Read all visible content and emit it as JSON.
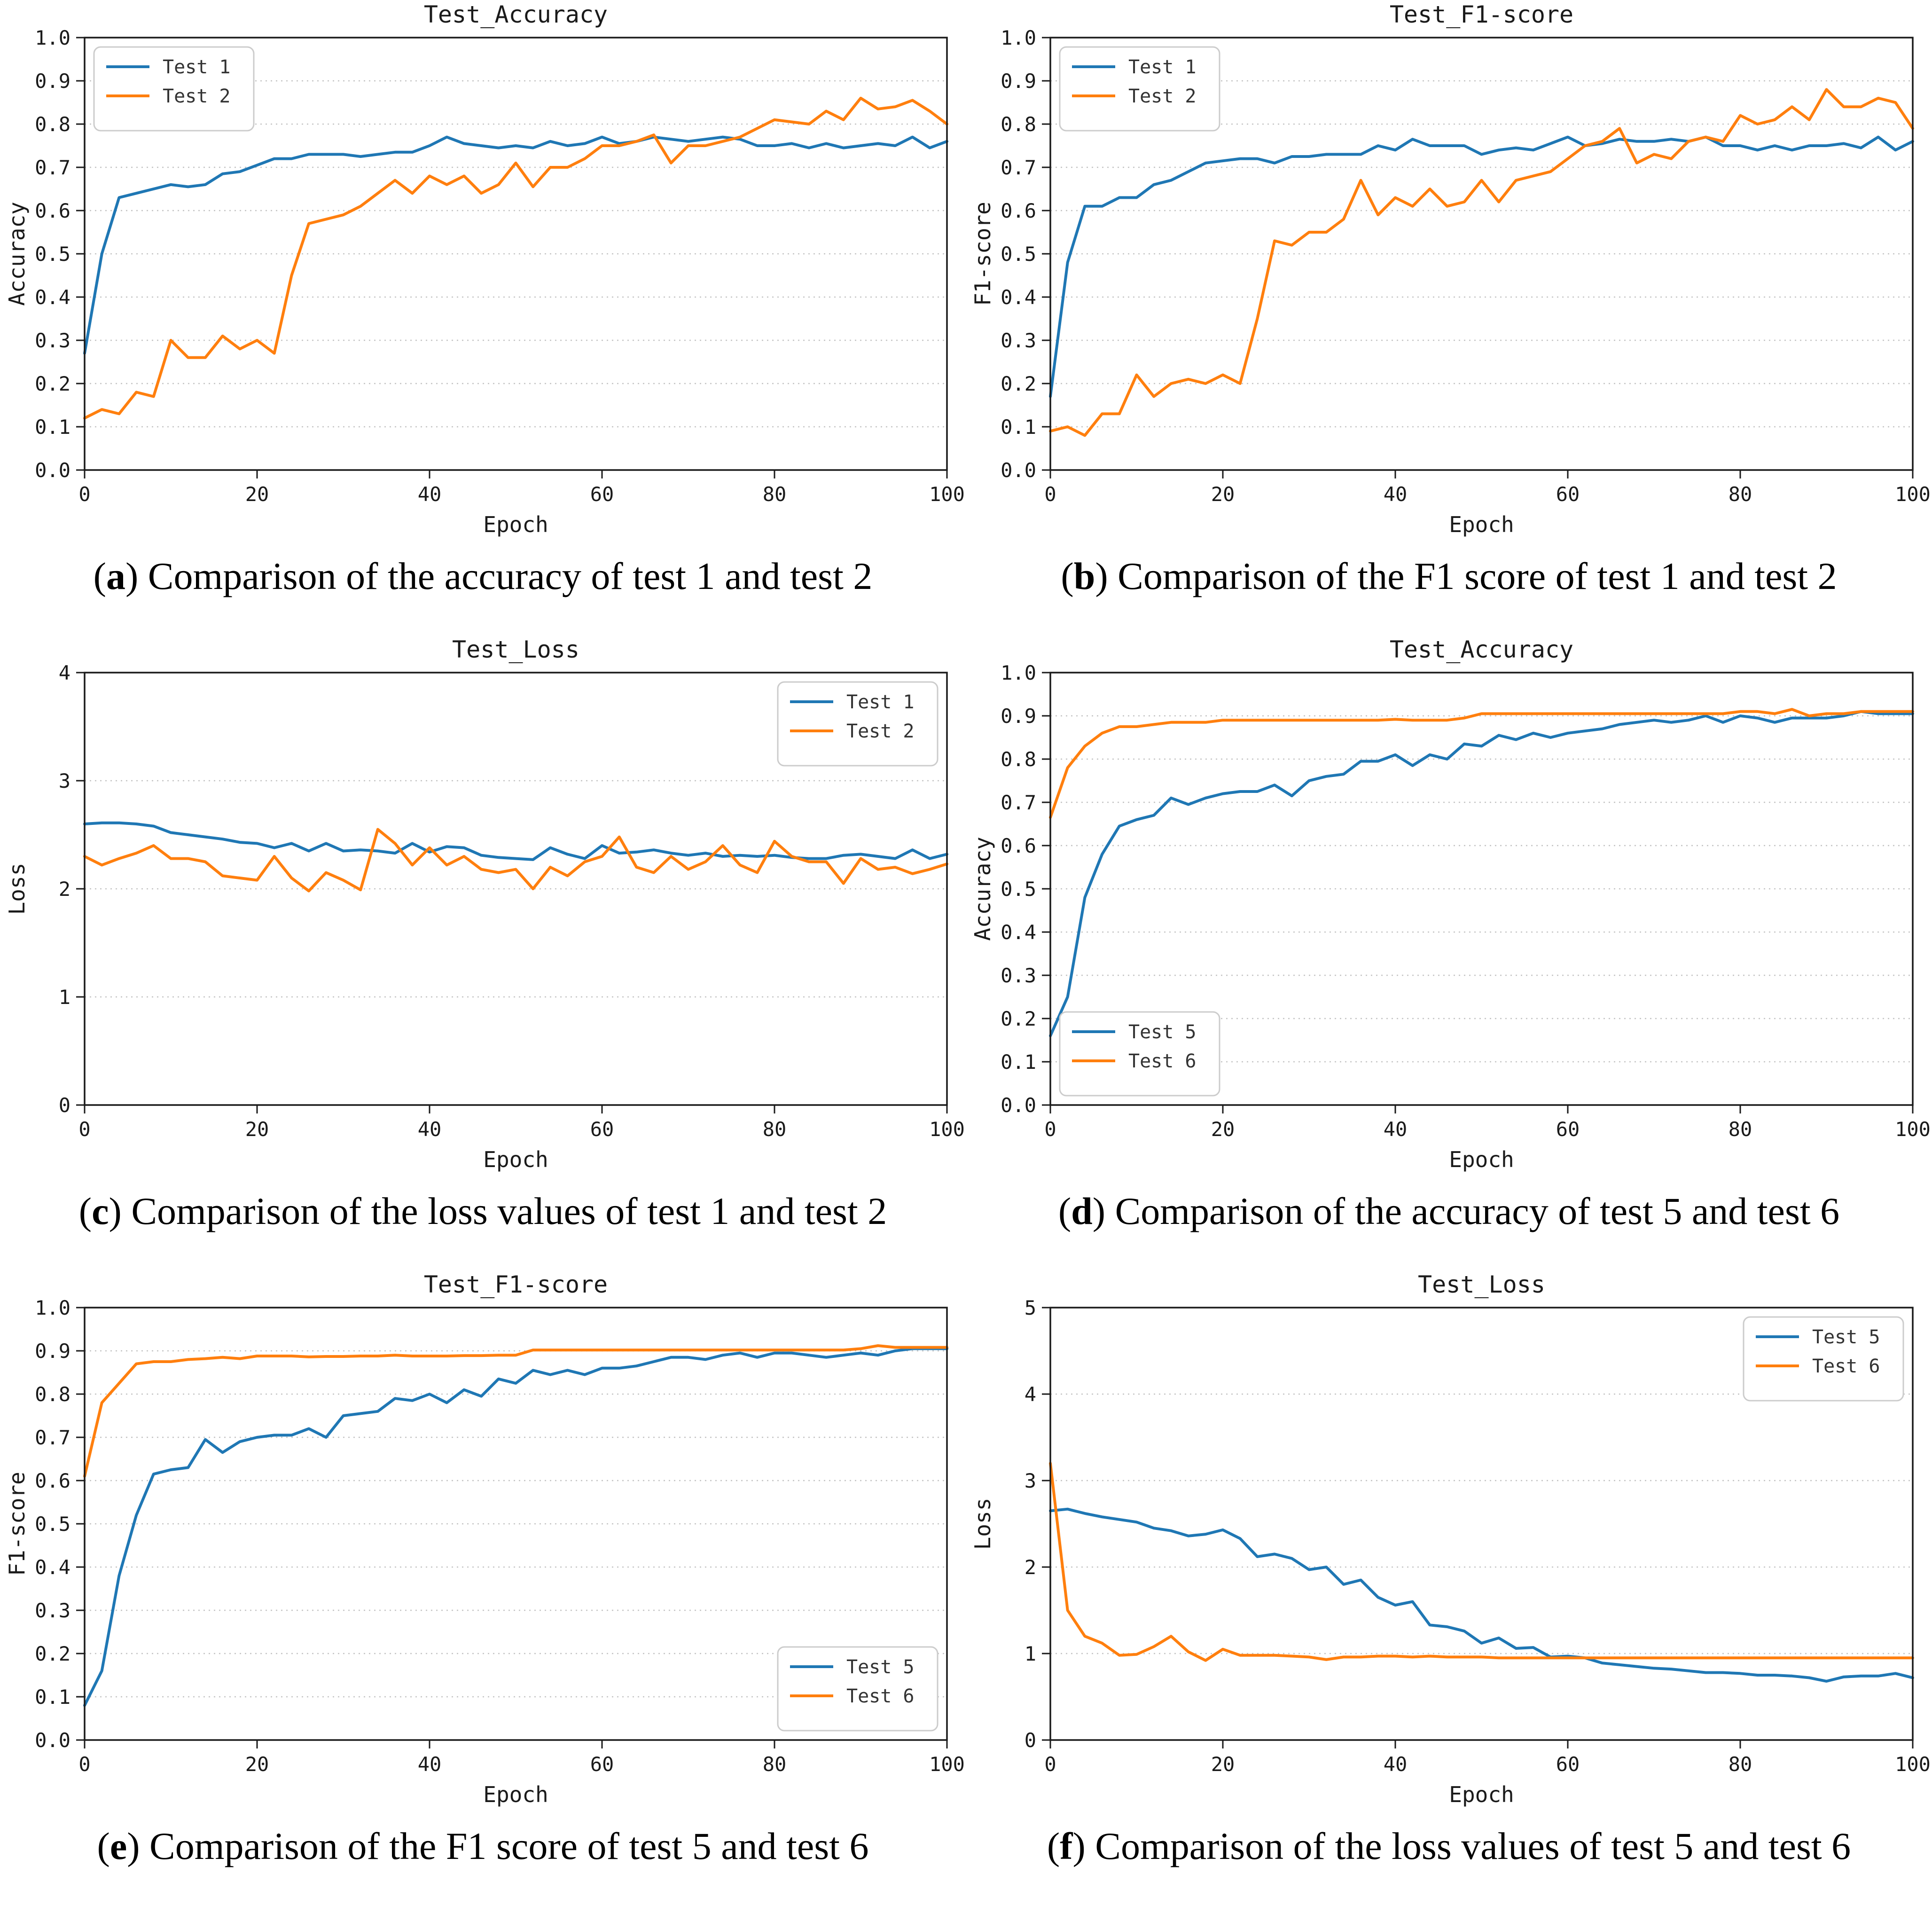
{
  "figure": {
    "type": "academic-figure-grid",
    "columns": 2,
    "rows": 3
  },
  "colors": {
    "series_blue": "#1f77b4",
    "series_orange": "#ff7f0e",
    "grid_line": "#c4c4c4",
    "axis": "#1a1a1a",
    "legend_border": "#cccccc",
    "background": "#ffffff"
  },
  "caption_format": {
    "open": "(",
    "close": ")"
  },
  "chart_data": [
    {
      "id": "a",
      "type": "line",
      "title": "Test_Accuracy",
      "xlabel": "Epoch",
      "ylabel": "Accuracy",
      "xlim": [
        0,
        100
      ],
      "ylim": [
        0,
        1
      ],
      "xticks": [
        0,
        20,
        40,
        60,
        80,
        100
      ],
      "yticks": [
        0,
        0.1,
        0.2,
        0.3,
        0.4,
        0.5,
        0.6,
        0.7,
        0.8,
        0.9,
        1
      ],
      "ytick_decimals": 1,
      "grid": "horizontal-dotted",
      "legend_pos": "top-left",
      "x_start": 0,
      "x_step": 2,
      "series": [
        {
          "name": "Test 1",
          "color": "#1f77b4",
          "values": [
            0.27,
            0.5,
            0.63,
            0.64,
            0.65,
            0.66,
            0.655,
            0.66,
            0.685,
            0.69,
            0.705,
            0.72,
            0.72,
            0.73,
            0.73,
            0.73,
            0.725,
            0.73,
            0.735,
            0.735,
            0.75,
            0.77,
            0.755,
            0.75,
            0.745,
            0.75,
            0.745,
            0.76,
            0.75,
            0.755,
            0.77,
            0.755,
            0.76,
            0.77,
            0.765,
            0.76,
            0.765,
            0.77,
            0.765,
            0.75,
            0.75,
            0.755,
            0.745,
            0.755,
            0.745,
            0.75,
            0.755,
            0.75,
            0.77,
            0.745,
            0.76
          ]
        },
        {
          "name": "Test 2",
          "color": "#ff7f0e",
          "values": [
            0.12,
            0.14,
            0.13,
            0.18,
            0.17,
            0.3,
            0.26,
            0.26,
            0.31,
            0.28,
            0.3,
            0.27,
            0.45,
            0.57,
            0.58,
            0.59,
            0.61,
            0.64,
            0.67,
            0.64,
            0.68,
            0.66,
            0.68,
            0.64,
            0.66,
            0.71,
            0.655,
            0.7,
            0.7,
            0.72,
            0.75,
            0.75,
            0.76,
            0.775,
            0.71,
            0.75,
            0.75,
            0.76,
            0.77,
            0.79,
            0.81,
            0.805,
            0.8,
            0.83,
            0.81,
            0.86,
            0.835,
            0.84,
            0.855,
            0.83,
            0.8
          ]
        }
      ],
      "caption_letter": "a",
      "caption_text": "Comparison of the accuracy of test 1 and test 2"
    },
    {
      "id": "b",
      "type": "line",
      "title": "Test_F1-score",
      "xlabel": "Epoch",
      "ylabel": "F1-score",
      "xlim": [
        0,
        100
      ],
      "ylim": [
        0,
        1
      ],
      "xticks": [
        0,
        20,
        40,
        60,
        80,
        100
      ],
      "yticks": [
        0,
        0.1,
        0.2,
        0.3,
        0.4,
        0.5,
        0.6,
        0.7,
        0.8,
        0.9,
        1
      ],
      "ytick_decimals": 1,
      "grid": "horizontal-dotted",
      "legend_pos": "top-left",
      "x_start": 0,
      "x_step": 2,
      "series": [
        {
          "name": "Test 1",
          "color": "#1f77b4",
          "values": [
            0.17,
            0.48,
            0.61,
            0.61,
            0.63,
            0.63,
            0.66,
            0.67,
            0.69,
            0.71,
            0.715,
            0.72,
            0.72,
            0.71,
            0.725,
            0.725,
            0.73,
            0.73,
            0.73,
            0.75,
            0.74,
            0.765,
            0.75,
            0.75,
            0.75,
            0.73,
            0.74,
            0.745,
            0.74,
            0.755,
            0.77,
            0.75,
            0.755,
            0.765,
            0.76,
            0.76,
            0.765,
            0.76,
            0.77,
            0.75,
            0.75,
            0.74,
            0.75,
            0.74,
            0.75,
            0.75,
            0.755,
            0.745,
            0.77,
            0.74,
            0.76
          ]
        },
        {
          "name": "Test 2",
          "color": "#ff7f0e",
          "values": [
            0.09,
            0.1,
            0.08,
            0.13,
            0.13,
            0.22,
            0.17,
            0.2,
            0.21,
            0.2,
            0.22,
            0.2,
            0.35,
            0.53,
            0.52,
            0.55,
            0.55,
            0.58,
            0.67,
            0.59,
            0.63,
            0.61,
            0.65,
            0.61,
            0.62,
            0.67,
            0.62,
            0.67,
            0.68,
            0.69,
            0.72,
            0.75,
            0.76,
            0.79,
            0.71,
            0.73,
            0.72,
            0.76,
            0.77,
            0.76,
            0.82,
            0.8,
            0.81,
            0.84,
            0.81,
            0.88,
            0.84,
            0.84,
            0.86,
            0.85,
            0.79
          ]
        }
      ],
      "caption_letter": "b",
      "caption_text": "Comparison of the F1 score of test 1 and test 2"
    },
    {
      "id": "c",
      "type": "line",
      "title": "Test_Loss",
      "xlabel": "Epoch",
      "ylabel": "Loss",
      "xlim": [
        0,
        100
      ],
      "ylim": [
        0,
        4
      ],
      "xticks": [
        0,
        20,
        40,
        60,
        80,
        100
      ],
      "yticks": [
        0,
        1,
        2,
        3,
        4
      ],
      "ytick_decimals": 0,
      "grid": "horizontal-dotted",
      "legend_pos": "top-right",
      "x_start": 0,
      "x_step": 2,
      "series": [
        {
          "name": "Test 1",
          "color": "#1f77b4",
          "values": [
            2.6,
            2.61,
            2.61,
            2.6,
            2.58,
            2.52,
            2.5,
            2.48,
            2.46,
            2.43,
            2.42,
            2.38,
            2.42,
            2.35,
            2.42,
            2.35,
            2.36,
            2.35,
            2.33,
            2.42,
            2.34,
            2.39,
            2.38,
            2.31,
            2.29,
            2.28,
            2.27,
            2.38,
            2.32,
            2.28,
            2.4,
            2.33,
            2.34,
            2.36,
            2.33,
            2.31,
            2.33,
            2.3,
            2.31,
            2.3,
            2.31,
            2.29,
            2.28,
            2.28,
            2.31,
            2.32,
            2.3,
            2.28,
            2.36,
            2.28,
            2.32
          ]
        },
        {
          "name": "Test 2",
          "color": "#ff7f0e",
          "values": [
            2.3,
            2.22,
            2.28,
            2.33,
            2.4,
            2.28,
            2.28,
            2.25,
            2.12,
            2.1,
            2.08,
            2.3,
            2.1,
            1.98,
            2.15,
            2.08,
            1.99,
            2.55,
            2.42,
            2.22,
            2.38,
            2.22,
            2.3,
            2.18,
            2.15,
            2.18,
            2.0,
            2.2,
            2.12,
            2.25,
            2.3,
            2.48,
            2.2,
            2.15,
            2.3,
            2.18,
            2.25,
            2.4,
            2.22,
            2.15,
            2.44,
            2.3,
            2.25,
            2.25,
            2.05,
            2.28,
            2.18,
            2.2,
            2.14,
            2.18,
            2.23
          ]
        }
      ],
      "caption_letter": "c",
      "caption_text": "Comparison of the loss values of test 1 and test 2"
    },
    {
      "id": "d",
      "type": "line",
      "title": "Test_Accuracy",
      "xlabel": "Epoch",
      "ylabel": "Accuracy",
      "xlim": [
        0,
        100
      ],
      "ylim": [
        0,
        1
      ],
      "xticks": [
        0,
        20,
        40,
        60,
        80,
        100
      ],
      "yticks": [
        0,
        0.1,
        0.2,
        0.3,
        0.4,
        0.5,
        0.6,
        0.7,
        0.8,
        0.9,
        1
      ],
      "ytick_decimals": 1,
      "grid": "horizontal-dotted",
      "legend_pos": "bottom-left",
      "x_start": 0,
      "x_step": 2,
      "series": [
        {
          "name": "Test 5",
          "color": "#1f77b4",
          "values": [
            0.16,
            0.25,
            0.48,
            0.58,
            0.645,
            0.66,
            0.67,
            0.71,
            0.695,
            0.71,
            0.72,
            0.725,
            0.725,
            0.74,
            0.715,
            0.75,
            0.76,
            0.765,
            0.795,
            0.795,
            0.81,
            0.785,
            0.81,
            0.8,
            0.835,
            0.83,
            0.855,
            0.845,
            0.86,
            0.85,
            0.86,
            0.865,
            0.87,
            0.88,
            0.885,
            0.89,
            0.885,
            0.89,
            0.9,
            0.885,
            0.9,
            0.895,
            0.885,
            0.895,
            0.895,
            0.895,
            0.9,
            0.91,
            0.905,
            0.905,
            0.905
          ]
        },
        {
          "name": "Test 6",
          "color": "#ff7f0e",
          "values": [
            0.665,
            0.78,
            0.83,
            0.86,
            0.875,
            0.875,
            0.88,
            0.885,
            0.885,
            0.885,
            0.89,
            0.89,
            0.89,
            0.89,
            0.89,
            0.89,
            0.89,
            0.89,
            0.89,
            0.89,
            0.892,
            0.89,
            0.89,
            0.89,
            0.895,
            0.905,
            0.905,
            0.905,
            0.905,
            0.905,
            0.905,
            0.905,
            0.905,
            0.905,
            0.905,
            0.905,
            0.905,
            0.905,
            0.905,
            0.905,
            0.91,
            0.91,
            0.905,
            0.915,
            0.9,
            0.905,
            0.905,
            0.91,
            0.91,
            0.91,
            0.91
          ]
        }
      ],
      "caption_letter": "d",
      "caption_text": "Comparison of the accuracy of test 5 and test 6"
    },
    {
      "id": "e",
      "type": "line",
      "title": "Test_F1-score",
      "xlabel": "Epoch",
      "ylabel": "F1-score",
      "xlim": [
        0,
        100
      ],
      "ylim": [
        0,
        1
      ],
      "xticks": [
        0,
        20,
        40,
        60,
        80,
        100
      ],
      "yticks": [
        0,
        0.1,
        0.2,
        0.3,
        0.4,
        0.5,
        0.6,
        0.7,
        0.8,
        0.9,
        1
      ],
      "ytick_decimals": 1,
      "grid": "horizontal-dotted",
      "legend_pos": "bottom-right",
      "x_start": 0,
      "x_step": 2,
      "series": [
        {
          "name": "Test 5",
          "color": "#1f77b4",
          "values": [
            0.08,
            0.16,
            0.38,
            0.52,
            0.615,
            0.625,
            0.63,
            0.695,
            0.665,
            0.69,
            0.7,
            0.705,
            0.705,
            0.72,
            0.7,
            0.75,
            0.755,
            0.76,
            0.79,
            0.785,
            0.8,
            0.78,
            0.81,
            0.795,
            0.835,
            0.825,
            0.855,
            0.845,
            0.855,
            0.845,
            0.86,
            0.86,
            0.865,
            0.875,
            0.885,
            0.885,
            0.88,
            0.89,
            0.895,
            0.885,
            0.895,
            0.895,
            0.89,
            0.885,
            0.89,
            0.895,
            0.89,
            0.9,
            0.905,
            0.905,
            0.905
          ]
        },
        {
          "name": "Test 6",
          "color": "#ff7f0e",
          "values": [
            0.61,
            0.78,
            0.825,
            0.87,
            0.875,
            0.875,
            0.88,
            0.882,
            0.885,
            0.882,
            0.888,
            0.888,
            0.888,
            0.886,
            0.887,
            0.887,
            0.888,
            0.888,
            0.89,
            0.888,
            0.888,
            0.888,
            0.889,
            0.889,
            0.89,
            0.89,
            0.902,
            0.902,
            0.902,
            0.902,
            0.902,
            0.902,
            0.902,
            0.902,
            0.902,
            0.902,
            0.902,
            0.902,
            0.902,
            0.902,
            0.902,
            0.902,
            0.902,
            0.902,
            0.902,
            0.905,
            0.912,
            0.908,
            0.908,
            0.908,
            0.908
          ]
        }
      ],
      "caption_letter": "e",
      "caption_text": "Comparison of the F1 score of test 5 and test 6"
    },
    {
      "id": "f",
      "type": "line",
      "title": "Test_Loss",
      "xlabel": "Epoch",
      "ylabel": "Loss",
      "xlim": [
        0,
        100
      ],
      "ylim": [
        0,
        5
      ],
      "xticks": [
        0,
        20,
        40,
        60,
        80,
        100
      ],
      "yticks": [
        0,
        1,
        2,
        3,
        4,
        5
      ],
      "ytick_decimals": 0,
      "grid": "horizontal-dotted",
      "legend_pos": "top-right",
      "x_start": 0,
      "x_step": 2,
      "series": [
        {
          "name": "Test 5",
          "color": "#1f77b4",
          "values": [
            2.65,
            2.67,
            2.62,
            2.58,
            2.55,
            2.52,
            2.45,
            2.42,
            2.36,
            2.38,
            2.43,
            2.33,
            2.12,
            2.15,
            2.1,
            1.97,
            2.0,
            1.8,
            1.85,
            1.65,
            1.56,
            1.6,
            1.33,
            1.31,
            1.26,
            1.12,
            1.18,
            1.06,
            1.07,
            0.96,
            0.97,
            0.95,
            0.89,
            0.87,
            0.85,
            0.83,
            0.82,
            0.8,
            0.78,
            0.78,
            0.77,
            0.75,
            0.75,
            0.74,
            0.72,
            0.68,
            0.73,
            0.74,
            0.74,
            0.77,
            0.72
          ]
        },
        {
          "name": "Test 6",
          "color": "#ff7f0e",
          "values": [
            3.2,
            1.5,
            1.2,
            1.12,
            0.98,
            0.99,
            1.08,
            1.2,
            1.02,
            0.92,
            1.05,
            0.98,
            0.98,
            0.98,
            0.97,
            0.96,
            0.93,
            0.96,
            0.96,
            0.97,
            0.97,
            0.96,
            0.97,
            0.96,
            0.96,
            0.96,
            0.95,
            0.95,
            0.95,
            0.95,
            0.95,
            0.95,
            0.95,
            0.95,
            0.95,
            0.95,
            0.95,
            0.95,
            0.95,
            0.95,
            0.95,
            0.95,
            0.95,
            0.95,
            0.95,
            0.95,
            0.95,
            0.95,
            0.95,
            0.95,
            0.95
          ]
        }
      ],
      "caption_letter": "f",
      "caption_text": "Comparison of the loss values of test 5 and test 6"
    }
  ]
}
